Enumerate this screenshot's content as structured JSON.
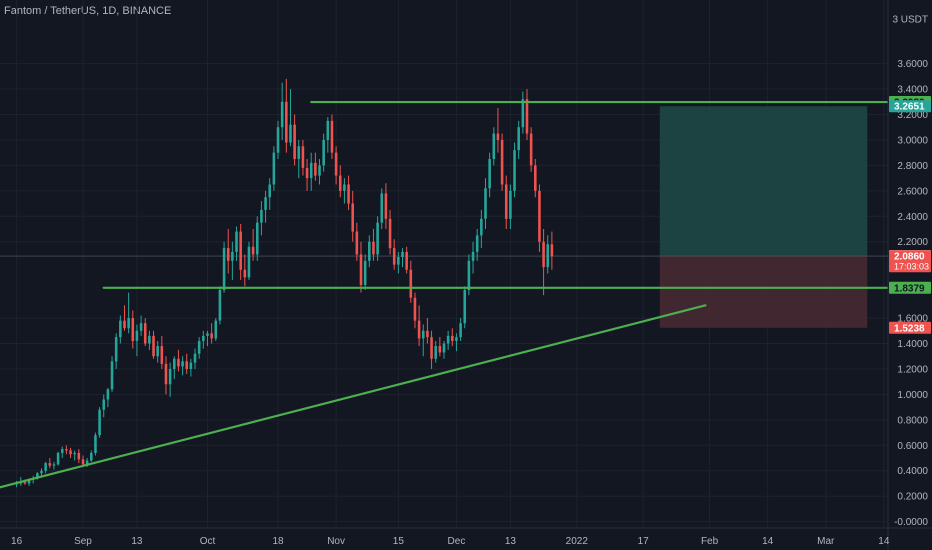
{
  "header": {
    "title": "Fantom / TetherUS, 1D, BINANCE"
  },
  "colors": {
    "background": "#131722",
    "up": "#26a69a",
    "down": "#ef5350",
    "line": "#4caf50",
    "grid": "#1e222d",
    "text": "#b2b5be",
    "profit_zone": "#1f4a47",
    "loss_zone": "#4a2a31"
  },
  "chart_data": {
    "type": "candlestick",
    "title": "Fantom / TetherUS, 1D, BINANCE",
    "y_unit": "USDT",
    "ylim": [
      -0.05,
      4.1
    ],
    "y_ticks": [
      "3 USDT",
      "3.6000",
      "3.4000",
      "3.2000",
      "3.0000",
      "2.8000",
      "2.6000",
      "2.4000",
      "2.2000",
      "1.6000",
      "1.4000",
      "1.2000",
      "1.0000",
      "0.8000",
      "0.6000",
      "0.4000",
      "0.2000",
      "-0.0000"
    ],
    "y_tick_values": [
      3.95,
      3.6,
      3.4,
      3.2,
      3.0,
      2.8,
      2.6,
      2.4,
      2.2,
      1.6,
      1.4,
      1.2,
      1.0,
      0.8,
      0.6,
      0.4,
      0.2,
      0.0
    ],
    "x_ticks": [
      "16",
      "Sep",
      "13",
      "Oct",
      "18",
      "Nov",
      "15",
      "Dec",
      "13",
      "2022",
      "17",
      "Feb",
      "14",
      "Mar",
      "14"
    ],
    "x_tick_days": [
      0,
      16,
      29,
      46,
      63,
      77,
      92,
      106,
      119,
      135,
      151,
      167,
      181,
      195,
      209
    ],
    "x_range_days": [
      -4,
      210
    ],
    "price_tags": [
      {
        "label": "3.2980",
        "value": 3.298,
        "style": "line"
      },
      {
        "label": "3.2651",
        "value": 3.2651,
        "style": "profit"
      },
      {
        "label": "2.0875",
        "value": 2.0875,
        "style": "neutral"
      },
      {
        "label": "2.0860",
        "value": 2.086,
        "style": "last",
        "sub": "17:03:03"
      },
      {
        "label": "1.8379",
        "value": 1.8379,
        "style": "line"
      },
      {
        "label": "1.5238",
        "value": 1.5238,
        "style": "loss"
      }
    ],
    "lines": [
      {
        "name": "resistance",
        "from": [
          71,
          3.298
        ],
        "to": [
          210,
          3.298
        ]
      },
      {
        "name": "support",
        "from": [
          21,
          1.8379
        ],
        "to": [
          210,
          1.8379
        ]
      },
      {
        "name": "trendline",
        "from": [
          -4,
          0.27
        ],
        "to": [
          166,
          1.7
        ]
      }
    ],
    "position": {
      "entry": 2.087,
      "target": 3.2651,
      "stop": 1.5238,
      "from_day": 155,
      "to_day": 205
    },
    "candles": [
      [
        0.3,
        0.32,
        0.27,
        0.3
      ],
      [
        0.3,
        0.35,
        0.28,
        0.31
      ],
      [
        0.31,
        0.33,
        0.29,
        0.3
      ],
      [
        0.3,
        0.34,
        0.28,
        0.33
      ],
      [
        0.33,
        0.36,
        0.3,
        0.34
      ],
      [
        0.34,
        0.39,
        0.33,
        0.38
      ],
      [
        0.38,
        0.42,
        0.36,
        0.4
      ],
      [
        0.4,
        0.47,
        0.38,
        0.46
      ],
      [
        0.46,
        0.5,
        0.42,
        0.44
      ],
      [
        0.44,
        0.47,
        0.41,
        0.45
      ],
      [
        0.45,
        0.55,
        0.44,
        0.54
      ],
      [
        0.54,
        0.59,
        0.5,
        0.57
      ],
      [
        0.57,
        0.6,
        0.53,
        0.56
      ],
      [
        0.56,
        0.58,
        0.5,
        0.53
      ],
      [
        0.53,
        0.56,
        0.48,
        0.54
      ],
      [
        0.54,
        0.57,
        0.46,
        0.49
      ],
      [
        0.49,
        0.52,
        0.44,
        0.45
      ],
      [
        0.45,
        0.5,
        0.43,
        0.48
      ],
      [
        0.48,
        0.56,
        0.47,
        0.54
      ],
      [
        0.54,
        0.7,
        0.52,
        0.68
      ],
      [
        0.68,
        0.9,
        0.66,
        0.88
      ],
      [
        0.88,
        1.0,
        0.82,
        0.96
      ],
      [
        0.96,
        1.05,
        0.9,
        1.04
      ],
      [
        1.04,
        1.3,
        1.02,
        1.26
      ],
      [
        1.26,
        1.48,
        1.2,
        1.45
      ],
      [
        1.45,
        1.62,
        1.4,
        1.58
      ],
      [
        1.58,
        1.7,
        1.5,
        1.52
      ],
      [
        1.52,
        1.8,
        1.48,
        1.6
      ],
      [
        1.6,
        1.66,
        1.36,
        1.42
      ],
      [
        1.42,
        1.55,
        1.3,
        1.5
      ],
      [
        1.5,
        1.62,
        1.46,
        1.56
      ],
      [
        1.56,
        1.6,
        1.38,
        1.4
      ],
      [
        1.4,
        1.5,
        1.35,
        1.46
      ],
      [
        1.46,
        1.5,
        1.28,
        1.3
      ],
      [
        1.3,
        1.42,
        1.25,
        1.38
      ],
      [
        1.38,
        1.46,
        1.2,
        1.24
      ],
      [
        1.24,
        1.3,
        1.0,
        1.08
      ],
      [
        1.08,
        1.25,
        0.98,
        1.2
      ],
      [
        1.2,
        1.3,
        1.12,
        1.28
      ],
      [
        1.28,
        1.35,
        1.18,
        1.22
      ],
      [
        1.22,
        1.3,
        1.15,
        1.26
      ],
      [
        1.26,
        1.32,
        1.16,
        1.2
      ],
      [
        1.2,
        1.28,
        1.14,
        1.25
      ],
      [
        1.25,
        1.36,
        1.2,
        1.32
      ],
      [
        1.32,
        1.45,
        1.28,
        1.42
      ],
      [
        1.42,
        1.5,
        1.36,
        1.46
      ],
      [
        1.46,
        1.5,
        1.38,
        1.48
      ],
      [
        1.48,
        1.56,
        1.4,
        1.44
      ],
      [
        1.44,
        1.6,
        1.42,
        1.58
      ],
      [
        1.58,
        1.85,
        1.55,
        1.82
      ],
      [
        1.82,
        2.2,
        1.8,
        2.15
      ],
      [
        2.15,
        2.3,
        1.95,
        2.05
      ],
      [
        2.05,
        2.2,
        1.9,
        2.12
      ],
      [
        2.12,
        2.32,
        2.05,
        2.28
      ],
      [
        2.28,
        2.34,
        1.9,
        1.98
      ],
      [
        1.98,
        2.1,
        1.85,
        1.92
      ],
      [
        1.92,
        2.2,
        1.9,
        2.16
      ],
      [
        2.16,
        2.3,
        2.05,
        2.1
      ],
      [
        2.1,
        2.4,
        2.05,
        2.35
      ],
      [
        2.35,
        2.52,
        2.25,
        2.45
      ],
      [
        2.45,
        2.6,
        2.35,
        2.55
      ],
      [
        2.55,
        2.7,
        2.45,
        2.65
      ],
      [
        2.65,
        2.95,
        2.6,
        2.9
      ],
      [
        2.9,
        3.15,
        2.85,
        3.1
      ],
      [
        3.1,
        3.45,
        3.0,
        3.3
      ],
      [
        3.3,
        3.48,
        2.9,
        2.98
      ],
      [
        2.98,
        3.4,
        2.95,
        3.12
      ],
      [
        3.12,
        3.2,
        2.8,
        2.85
      ],
      [
        2.85,
        3.0,
        2.7,
        2.95
      ],
      [
        2.95,
        3.0,
        2.72,
        2.78
      ],
      [
        2.78,
        2.85,
        2.6,
        2.7
      ],
      [
        2.7,
        2.9,
        2.6,
        2.82
      ],
      [
        2.82,
        2.9,
        2.68,
        2.72
      ],
      [
        2.72,
        2.85,
        2.65,
        2.8
      ],
      [
        2.8,
        3.05,
        2.75,
        3.0
      ],
      [
        3.0,
        3.18,
        2.9,
        3.15
      ],
      [
        3.15,
        3.2,
        2.85,
        2.9
      ],
      [
        2.9,
        2.95,
        2.65,
        2.72
      ],
      [
        2.72,
        2.8,
        2.55,
        2.6
      ],
      [
        2.6,
        2.7,
        2.5,
        2.65
      ],
      [
        2.65,
        2.72,
        2.45,
        2.5
      ],
      [
        2.5,
        2.6,
        2.2,
        2.28
      ],
      [
        2.28,
        2.35,
        2.05,
        2.1
      ],
      [
        2.1,
        2.2,
        1.8,
        1.86
      ],
      [
        1.86,
        2.1,
        1.82,
        2.05
      ],
      [
        2.05,
        2.25,
        2.0,
        2.2
      ],
      [
        2.2,
        2.3,
        2.05,
        2.1
      ],
      [
        2.1,
        2.4,
        2.05,
        2.35
      ],
      [
        2.35,
        2.62,
        2.3,
        2.58
      ],
      [
        2.58,
        2.66,
        2.3,
        2.38
      ],
      [
        2.38,
        2.45,
        2.1,
        2.15
      ],
      [
        2.15,
        2.22,
        1.98,
        2.02
      ],
      [
        2.02,
        2.12,
        1.95,
        2.08
      ],
      [
        2.08,
        2.15,
        2.0,
        2.12
      ],
      [
        2.12,
        2.16,
        1.95,
        1.98
      ],
      [
        1.98,
        2.05,
        1.72,
        1.76
      ],
      [
        1.76,
        1.8,
        1.52,
        1.58
      ],
      [
        1.58,
        1.7,
        1.38,
        1.44
      ],
      [
        1.44,
        1.55,
        1.3,
        1.5
      ],
      [
        1.5,
        1.6,
        1.4,
        1.45
      ],
      [
        1.45,
        1.5,
        1.2,
        1.28
      ],
      [
        1.28,
        1.42,
        1.25,
        1.38
      ],
      [
        1.38,
        1.45,
        1.3,
        1.33
      ],
      [
        1.33,
        1.42,
        1.28,
        1.4
      ],
      [
        1.4,
        1.5,
        1.35,
        1.46
      ],
      [
        1.46,
        1.52,
        1.38,
        1.42
      ],
      [
        1.42,
        1.48,
        1.34,
        1.45
      ],
      [
        1.45,
        1.6,
        1.42,
        1.56
      ],
      [
        1.56,
        1.85,
        1.52,
        1.82
      ],
      [
        1.82,
        2.1,
        1.78,
        2.05
      ],
      [
        2.05,
        2.2,
        1.95,
        2.12
      ],
      [
        2.12,
        2.3,
        2.05,
        2.25
      ],
      [
        2.25,
        2.45,
        2.15,
        2.38
      ],
      [
        2.38,
        2.7,
        2.3,
        2.62
      ],
      [
        2.62,
        2.9,
        2.55,
        2.85
      ],
      [
        2.85,
        3.1,
        2.8,
        3.05
      ],
      [
        3.05,
        3.25,
        2.9,
        3.0
      ],
      [
        3.0,
        3.05,
        2.6,
        2.65
      ],
      [
        2.65,
        2.72,
        2.3,
        2.38
      ],
      [
        2.38,
        2.65,
        2.3,
        2.6
      ],
      [
        2.6,
        2.98,
        2.55,
        2.92
      ],
      [
        2.92,
        3.15,
        2.85,
        3.1
      ],
      [
        3.1,
        3.38,
        3.05,
        3.32
      ],
      [
        3.32,
        3.4,
        3.0,
        3.05
      ],
      [
        3.05,
        3.1,
        2.75,
        2.8
      ],
      [
        2.8,
        2.85,
        2.55,
        2.6
      ],
      [
        2.6,
        2.65,
        2.12,
        2.2
      ],
      [
        2.2,
        2.3,
        1.78,
        2.0
      ],
      [
        2.0,
        2.25,
        1.95,
        2.18
      ],
      [
        2.18,
        2.28,
        1.98,
        2.086
      ]
    ]
  }
}
